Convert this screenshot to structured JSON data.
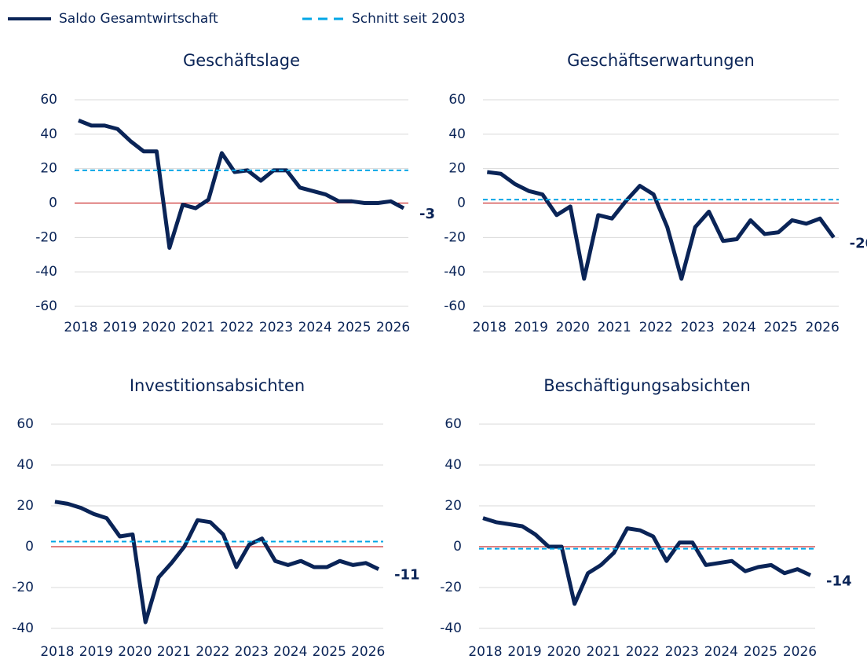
{
  "chart_data": [
    {
      "type": "line",
      "title": "Geschäftslage",
      "x": [
        2018,
        2018.33,
        2018.67,
        2019,
        2019.33,
        2019.67,
        2020,
        2020.33,
        2020.67,
        2021,
        2021.33,
        2021.67,
        2022,
        2022.33,
        2022.67,
        2023,
        2023.33,
        2023.67,
        2024,
        2024.33,
        2024.67,
        2025,
        2025.33,
        2025.67,
        2026,
        2026.33
      ],
      "series": [
        {
          "name": "Saldo Gesamtwirtschaft",
          "color": "#0a2457",
          "values": [
            48,
            45,
            45,
            43,
            36,
            30,
            30,
            -26,
            -1,
            -3,
            2,
            29,
            18,
            19,
            13,
            19,
            19,
            9,
            7,
            5,
            1,
            1,
            0,
            0,
            1,
            -3
          ]
        },
        {
          "name": "Schnitt seit 2003",
          "color": "#00a6e6",
          "dashed": true,
          "value": 19
        }
      ],
      "xlim": [
        2017.9,
        2026.45
      ],
      "xticks": [
        2018,
        2019,
        2020,
        2021,
        2022,
        2023,
        2024,
        2025,
        2026
      ],
      "ylim": [
        -60,
        60
      ],
      "yticks": [
        -60,
        -40,
        -20,
        0,
        20,
        40,
        60
      ],
      "grid": true,
      "zero_line_color": "#c00000"
    },
    {
      "type": "line",
      "title": "Geschäftserwartungen",
      "x": [
        2018,
        2018.33,
        2018.67,
        2019,
        2019.33,
        2019.67,
        2020,
        2020.33,
        2020.67,
        2021,
        2021.33,
        2021.67,
        2022,
        2022.33,
        2022.67,
        2023,
        2023.33,
        2023.67,
        2024,
        2024.33,
        2024.67,
        2025,
        2025.33,
        2025.67,
        2026,
        2026.33
      ],
      "series": [
        {
          "color": "#0a2457",
          "values": [
            18,
            17,
            11,
            7,
            5,
            -7,
            -2,
            -44,
            -7,
            -9,
            1,
            10,
            5,
            -14,
            -44,
            -14,
            -5,
            -22,
            -21,
            -10,
            -18,
            -17,
            -10,
            -12,
            -9,
            -20
          ]
        },
        {
          "color": "#00a6e6",
          "dashed": true,
          "value": 2
        }
      ],
      "xlim": [
        2017.9,
        2026.45
      ],
      "xticks": [
        2018,
        2019,
        2020,
        2021,
        2022,
        2023,
        2024,
        2025,
        2026
      ],
      "ylim": [
        -60,
        60
      ],
      "yticks": [
        -60,
        -40,
        -20,
        0,
        20,
        40,
        60
      ],
      "grid": true,
      "zero_line_color": "#c00000"
    },
    {
      "type": "line",
      "title": "Investitionsabsichten",
      "x": [
        2018,
        2018.33,
        2018.67,
        2019,
        2019.33,
        2019.67,
        2020,
        2020.33,
        2020.67,
        2021,
        2021.33,
        2021.67,
        2022,
        2022.33,
        2022.67,
        2023,
        2023.33,
        2023.67,
        2024,
        2024.33,
        2024.67,
        2025,
        2025.33,
        2025.67,
        2026,
        2026.33
      ],
      "series": [
        {
          "color": "#0a2457",
          "values": [
            22,
            21,
            19,
            16,
            14,
            5,
            6,
            -37,
            -15,
            -8,
            0,
            13,
            12,
            6,
            -10,
            1,
            4,
            -7,
            -9,
            -7,
            -10,
            -10,
            -7,
            -9,
            -8,
            -11
          ]
        },
        {
          "color": "#00a6e6",
          "dashed": true,
          "value": 2.5
        }
      ],
      "xlim": [
        2017.9,
        2026.45
      ],
      "xticks": [
        2018,
        2019,
        2020,
        2021,
        2022,
        2023,
        2024,
        2025,
        2026
      ],
      "ylim": [
        -40,
        60
      ],
      "yticks": [
        -40,
        -20,
        0,
        20,
        40,
        60
      ],
      "grid": true,
      "zero_line_color": "#c00000"
    },
    {
      "type": "line",
      "title": "Beschäftigungsabsichten",
      "x": [
        2018,
        2018.33,
        2018.67,
        2019,
        2019.33,
        2019.67,
        2020,
        2020.33,
        2020.67,
        2021,
        2021.33,
        2021.67,
        2022,
        2022.33,
        2022.67,
        2023,
        2023.33,
        2023.67,
        2024,
        2024.33,
        2024.67,
        2025,
        2025.33,
        2025.67,
        2026,
        2026.33
      ],
      "series": [
        {
          "color": "#0a2457",
          "values": [
            14,
            12,
            11,
            10,
            6,
            0,
            0,
            -28,
            -13,
            -9,
            -3,
            9,
            8,
            5,
            -7,
            2,
            2,
            -9,
            -8,
            -7,
            -12,
            -10,
            -9,
            -13,
            -11,
            -14
          ]
        },
        {
          "color": "#00a6e6",
          "dashed": true,
          "value": -1
        }
      ],
      "xlim": [
        2017.9,
        2026.45
      ],
      "xticks": [
        2018,
        2019,
        2020,
        2021,
        2022,
        2023,
        2024,
        2025,
        2026
      ],
      "ylim": [
        -40,
        60
      ],
      "yticks": [
        -40,
        -20,
        0,
        20,
        40,
        60
      ],
      "grid": true,
      "zero_line_color": "#c00000"
    }
  ]
}
